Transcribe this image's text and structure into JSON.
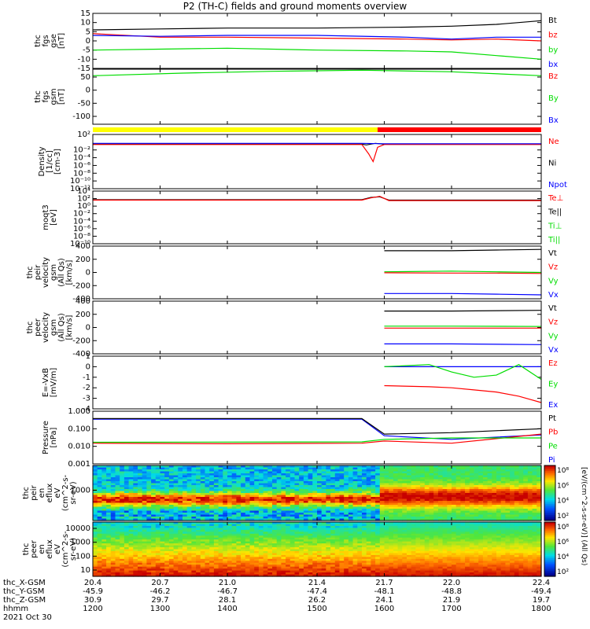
{
  "title": "P2 (TH-C) fields and ground moments overview",
  "chart_data": [
    {
      "type": "line",
      "name": "fgs-gse",
      "ylabel": [
        "thc",
        "fgs",
        "gse",
        "[nT]"
      ],
      "ylim": [
        -15,
        15
      ],
      "yticks": [
        15,
        10,
        5,
        0,
        -5,
        -10,
        -15
      ],
      "legend": [
        {
          "label": "Bt",
          "color": "#000000"
        },
        {
          "label": "bz",
          "color": "#ff0000"
        },
        {
          "label": "by",
          "color": "#00dd00"
        },
        {
          "label": "bx",
          "color": "#0000ff"
        }
      ],
      "series": [
        {
          "name": "Bt",
          "color": "#000000",
          "x": [
            20.4,
            20.7,
            21.0,
            21.4,
            21.8,
            22.0,
            22.2,
            22.4
          ],
          "y": [
            6,
            6.5,
            7,
            7,
            7.5,
            8,
            9,
            11
          ]
        },
        {
          "name": "bz",
          "color": "#ff0000",
          "x": [
            20.4,
            20.7,
            21.0,
            21.4,
            21.8,
            22.0,
            22.2,
            22.4
          ],
          "y": [
            4,
            2,
            2,
            1.5,
            1,
            0.5,
            1,
            0
          ]
        },
        {
          "name": "by",
          "color": "#00dd00",
          "x": [
            20.4,
            20.7,
            21.0,
            21.4,
            21.8,
            22.0,
            22.2,
            22.4
          ],
          "y": [
            -5,
            -4.5,
            -4,
            -5,
            -5.5,
            -6,
            -8,
            -10
          ]
        },
        {
          "name": "bx",
          "color": "#0000ff",
          "x": [
            20.4,
            20.7,
            21.0,
            21.4,
            21.8,
            22.0,
            22.2,
            22.4
          ],
          "y": [
            3,
            2.5,
            3,
            3,
            2,
            1,
            2,
            2
          ]
        }
      ]
    },
    {
      "type": "line",
      "name": "fgs-gsm",
      "ylabel": [
        "thc",
        "fgs",
        "gsm",
        "[nT]"
      ],
      "ylim": [
        -130,
        80
      ],
      "yticks": [
        50,
        0,
        -50,
        -100
      ],
      "legend": [
        {
          "label": "Bz",
          "color": "#ff0000"
        },
        {
          "label": "By",
          "color": "#00dd00"
        },
        {
          "label": "Bx",
          "color": "#0000ff"
        }
      ],
      "series": [
        {
          "name": "By",
          "color": "#00dd00",
          "x": [
            20.4,
            20.8,
            21.2,
            21.6,
            22.0,
            22.4
          ],
          "y": [
            55,
            65,
            72,
            76,
            70,
            55
          ]
        }
      ]
    },
    {
      "type": "bar-strip",
      "name": "mode-bar",
      "segments": [
        {
          "from": 20.4,
          "to": 21.67,
          "color": "#ffff00"
        },
        {
          "from": 21.67,
          "to": 22.4,
          "color": "#ff0000"
        }
      ]
    },
    {
      "type": "line",
      "name": "density",
      "ylabel": [
        "Density",
        "[1/cc]",
        "[cm-3]"
      ],
      "ylog": true,
      "ylim": [
        1e-12,
        100.0
      ],
      "yticks": [
        "10²",
        "10⁻²",
        "10⁻⁴",
        "10⁻⁶",
        "10⁻⁸",
        "10⁻¹⁰",
        "10⁻¹²"
      ],
      "legend": [
        {
          "label": "Ne",
          "color": "#ff0000"
        },
        {
          "label": "Ni",
          "color": "#000000"
        },
        {
          "label": "Npot",
          "color": "#0000ff"
        }
      ],
      "series": [
        {
          "name": "Ni",
          "color": "#000000",
          "x": [
            20.4,
            21.6,
            21.62,
            21.66,
            21.7,
            22.4
          ],
          "y": [
            0.3,
            0.3,
            0.2,
            0.5,
            0.3,
            0.3
          ]
        },
        {
          "name": "Ne",
          "color": "#ff0000",
          "x": [
            20.4,
            21.6,
            21.63,
            21.65,
            21.67,
            21.7,
            22.4
          ],
          "y": [
            0.25,
            0.25,
            0.001,
            1e-05,
            0.05,
            0.25,
            0.25
          ]
        },
        {
          "name": "Npot",
          "color": "#0000ff",
          "x": [
            20.4,
            21.6,
            21.7,
            22.4
          ],
          "y": [
            0.5,
            0.5,
            0.4,
            0.4
          ]
        }
      ]
    },
    {
      "type": "line",
      "name": "temperature",
      "ylabel": [
        "moqt3",
        "[eV]"
      ],
      "ylog": true,
      "ylim": [
        1e-10,
        10000.0
      ],
      "yticks": [
        "10⁴",
        "10²",
        "10⁰",
        "10⁻²",
        "10⁻⁴",
        "10⁻⁶",
        "10⁻⁸",
        "10⁻¹⁰"
      ],
      "legend": [
        {
          "label": "Te⊥",
          "color": "#ff0000"
        },
        {
          "label": "Te||",
          "color": "#000000"
        },
        {
          "label": "Ti⊥",
          "color": "#00dd00"
        },
        {
          "label": "Ti||",
          "color": "#00dd00"
        }
      ],
      "series": [
        {
          "name": "Te||",
          "color": "#000000",
          "x": [
            20.4,
            21.6,
            21.64,
            21.68,
            21.72,
            22.4
          ],
          "y": [
            50,
            50,
            200,
            300,
            40,
            40
          ]
        },
        {
          "name": "Te⊥",
          "color": "#ff0000",
          "x": [
            20.4,
            21.6,
            21.64,
            21.68,
            21.72,
            22.4
          ],
          "y": [
            40,
            40,
            150,
            400,
            30,
            30
          ]
        }
      ]
    },
    {
      "type": "line",
      "name": "peir-velocity",
      "ylabel": [
        "thc",
        "peir",
        "velocity",
        "gsm",
        "(All Qs)",
        "[km/s]"
      ],
      "ylim": [
        -400,
        400
      ],
      "yticks": [
        400,
        200,
        0,
        -200,
        -400
      ],
      "legend": [
        {
          "label": "Vt",
          "color": "#000000"
        },
        {
          "label": "Vz",
          "color": "#ff0000"
        },
        {
          "label": "Vy",
          "color": "#00dd00"
        },
        {
          "label": "Vx",
          "color": "#0000ff"
        }
      ],
      "series": [
        {
          "name": "Vt",
          "color": "#000000",
          "x": [
            21.7,
            22.0,
            22.2,
            22.4
          ],
          "y": [
            330,
            330,
            340,
            350
          ]
        },
        {
          "name": "Vy",
          "color": "#00dd00",
          "x": [
            21.7,
            22.0,
            22.2,
            22.4
          ],
          "y": [
            10,
            20,
            10,
            0
          ]
        },
        {
          "name": "Vz",
          "color": "#ff0000",
          "x": [
            21.7,
            22.0,
            22.2,
            22.4
          ],
          "y": [
            -5,
            -10,
            -10,
            -15
          ]
        },
        {
          "name": "Vx",
          "color": "#0000ff",
          "x": [
            21.7,
            22.0,
            22.2,
            22.4
          ],
          "y": [
            -320,
            -320,
            -330,
            -340
          ]
        }
      ]
    },
    {
      "type": "line",
      "name": "peer-velocity",
      "ylabel": [
        "thc",
        "peer",
        "velocity",
        "gsm",
        "(All Qs)",
        "[km/s]"
      ],
      "ylim": [
        -400,
        400
      ],
      "yticks": [
        400,
        200,
        0,
        -200,
        -400
      ],
      "legend": [
        {
          "label": "Vt",
          "color": "#000000"
        },
        {
          "label": "Vz",
          "color": "#ff0000"
        },
        {
          "label": "Vy",
          "color": "#00dd00"
        },
        {
          "label": "Vx",
          "color": "#0000ff"
        }
      ],
      "series": [
        {
          "name": "Vt",
          "color": "#000000",
          "x": [
            21.7,
            22.0,
            22.4
          ],
          "y": [
            250,
            250,
            260
          ]
        },
        {
          "name": "Vy",
          "color": "#00dd00",
          "x": [
            21.7,
            22.0,
            22.4
          ],
          "y": [
            20,
            20,
            15
          ]
        },
        {
          "name": "Vz",
          "color": "#ff0000",
          "x": [
            21.7,
            22.0,
            22.4
          ],
          "y": [
            -10,
            -10,
            -10
          ]
        },
        {
          "name": "Vx",
          "color": "#0000ff",
          "x": [
            21.7,
            22.0,
            22.4
          ],
          "y": [
            -250,
            -250,
            -260
          ]
        }
      ]
    },
    {
      "type": "line",
      "name": "efield",
      "ylabel": [
        "E=-VxB",
        "[mV/m]"
      ],
      "ylim": [
        -4,
        1
      ],
      "yticks": [
        1,
        0,
        -1,
        -2,
        -3,
        -4
      ],
      "legend": [
        {
          "label": "Ez",
          "color": "#ff0000"
        },
        {
          "label": "Ey",
          "color": "#00dd00"
        },
        {
          "label": "Ex",
          "color": "#0000ff"
        }
      ],
      "series": [
        {
          "name": "Ex",
          "color": "#0000ff",
          "x": [
            21.7,
            22.0,
            22.4
          ],
          "y": [
            0,
            0,
            0
          ]
        },
        {
          "name": "Ey",
          "color": "#00dd00",
          "x": [
            21.7,
            21.9,
            22.0,
            22.1,
            22.2,
            22.3,
            22.4
          ],
          "y": [
            0,
            0.2,
            -0.5,
            -1,
            -0.8,
            0.2,
            -1.2
          ]
        },
        {
          "name": "Ez",
          "color": "#ff0000",
          "x": [
            21.7,
            21.9,
            22.0,
            22.1,
            22.2,
            22.3,
            22.4
          ],
          "y": [
            -1.8,
            -1.9,
            -2,
            -2.2,
            -2.4,
            -2.8,
            -3.4
          ]
        }
      ]
    },
    {
      "type": "line",
      "name": "pressure",
      "ylabel": [
        "Pressure",
        "[nPa]"
      ],
      "ylog": true,
      "ylim": [
        0.001,
        1.0
      ],
      "yticks": [
        "1.000",
        "0.100",
        "0.010",
        "0.001"
      ],
      "legend": [
        {
          "label": "Pt",
          "color": "#000000"
        },
        {
          "label": "Pb",
          "color": "#ff0000"
        },
        {
          "label": "Pe",
          "color": "#00dd00"
        },
        {
          "label": "Pi",
          "color": "#0000ff"
        }
      ],
      "series": [
        {
          "name": "Pi",
          "color": "#0000ff",
          "x": [
            20.4,
            21.5,
            21.6,
            21.7,
            22.0,
            22.4
          ],
          "y": [
            0.35,
            0.35,
            0.35,
            0.04,
            0.025,
            0.045
          ]
        },
        {
          "name": "Pt",
          "color": "#000000",
          "x": [
            20.4,
            21.5,
            21.6,
            21.7,
            22.0,
            22.4
          ],
          "y": [
            0.38,
            0.38,
            0.38,
            0.05,
            0.06,
            0.1
          ]
        },
        {
          "name": "Pb",
          "color": "#ff0000",
          "x": [
            20.4,
            21.0,
            21.6,
            21.7,
            22.0,
            22.4
          ],
          "y": [
            0.015,
            0.014,
            0.015,
            0.02,
            0.015,
            0.05
          ]
        },
        {
          "name": "Pe",
          "color": "#00dd00",
          "x": [
            20.4,
            21.6,
            21.7,
            22.0,
            22.4
          ],
          "y": [
            0.017,
            0.018,
            0.025,
            0.03,
            0.03
          ]
        }
      ]
    },
    {
      "type": "heatmap",
      "name": "peir-eflux",
      "ylabel": [
        "thc",
        "peir",
        "en",
        "eflux",
        "eV",
        "(cm^2-s-",
        "sr-eV)"
      ],
      "yticks": [
        "1000"
      ],
      "colorbar": {
        "label": "[eV/(cm^2-s-sr-eV)] (All Qs)",
        "ticks": [
          "10⁸",
          "10⁶",
          "10⁴",
          "10²"
        ]
      }
    },
    {
      "type": "heatmap",
      "name": "peer-eflux",
      "ylabel": [
        "thc",
        "peer",
        "en",
        "eflux",
        "eV",
        "(cm^2-s-",
        "sr-eV)"
      ],
      "yticks": [
        "10000",
        "1000",
        "100",
        "10"
      ],
      "colorbar": {
        "ticks": [
          "10⁸",
          "10⁶",
          "10⁴",
          "10²"
        ]
      }
    }
  ],
  "xaxis": {
    "range": [
      20.4,
      22.4
    ],
    "rows": [
      {
        "label": "thc_X-GSM",
        "values": [
          "20.4",
          "20.7",
          "21.0",
          "21.4",
          "21.7",
          "22.0",
          "22.4"
        ]
      },
      {
        "label": "thc_Y-GSM",
        "values": [
          "-45.9",
          "-46.2",
          "-46.7",
          "-47.4",
          "-48.1",
          "-48.8",
          "-49.4"
        ]
      },
      {
        "label": "thc_Z-GSM",
        "values": [
          "30.9",
          "29.7",
          "28.1",
          "26.2",
          "24.1",
          "21.9",
          "19.7"
        ]
      },
      {
        "label": "hhmm",
        "values": [
          "1200",
          "1300",
          "1400",
          "1500",
          "1600",
          "1700",
          "1800"
        ]
      }
    ],
    "date": "2021 Oct 30"
  },
  "colorbar_label": "[eV/(cm^2-s-sr-eV)]"
}
